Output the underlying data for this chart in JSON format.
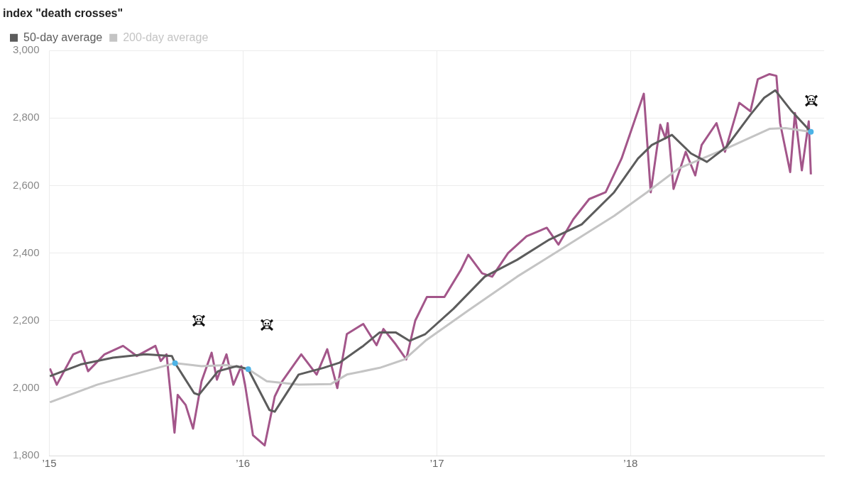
{
  "chart_data": {
    "type": "line",
    "title": "index \"death crosses\"",
    "xlim": [
      "2015-01-01",
      "2019-01-01"
    ],
    "xticks": [
      {
        "value": "2015-01-01",
        "label": "’15"
      },
      {
        "value": "2016-01-01",
        "label": "’16"
      },
      {
        "value": "2017-01-01",
        "label": "’17"
      },
      {
        "value": "2018-01-01",
        "label": "’18"
      }
    ],
    "ylim": [
      1800,
      3000
    ],
    "yticks": [
      {
        "value": 1800,
        "label": "1,800"
      },
      {
        "value": 2000,
        "label": "2,000"
      },
      {
        "value": 2200,
        "label": "2,200"
      },
      {
        "value": 2400,
        "label": "2,400"
      },
      {
        "value": 2600,
        "label": "2,600"
      },
      {
        "value": 2800,
        "label": "2,800"
      },
      {
        "value": 3000,
        "label": "3,000"
      }
    ],
    "grid": true,
    "legend": "top left",
    "marker": "none",
    "line_style": "solid",
    "series": [
      {
        "name": "50-day average",
        "color": "#5c5c5c",
        "x": [
          "2015-01-02",
          "2015-03-01",
          "2015-05-01",
          "2015-07-01",
          "2015-08-20",
          "2015-08-26",
          "2015-10-01",
          "2015-10-10",
          "2015-11-15",
          "2015-12-20",
          "2016-01-11",
          "2016-02-20",
          "2016-03-01",
          "2016-04-15",
          "2016-06-01",
          "2016-07-01",
          "2016-08-15",
          "2016-09-15",
          "2016-10-15",
          "2016-11-10",
          "2016-12-10",
          "2017-02-01",
          "2017-04-01",
          "2017-06-01",
          "2017-08-01",
          "2017-10-01",
          "2017-12-01",
          "2018-01-15",
          "2018-02-10",
          "2018-03-20",
          "2018-04-25",
          "2018-05-25",
          "2018-07-01",
          "2018-08-15",
          "2018-09-10",
          "2018-10-01",
          "2018-11-01",
          "2018-12-07"
        ],
        "values": [
          2035,
          2070,
          2090,
          2100,
          2095,
          2074,
          1985,
          1980,
          2050,
          2065,
          2056,
          1935,
          1930,
          2040,
          2060,
          2075,
          2125,
          2165,
          2165,
          2140,
          2160,
          2235,
          2330,
          2380,
          2440,
          2485,
          2580,
          2680,
          2720,
          2750,
          2695,
          2670,
          2715,
          2810,
          2860,
          2882,
          2820,
          2759
        ]
      },
      {
        "name": "200-day average",
        "color": "#c4c4c4",
        "x": [
          "2015-01-02",
          "2015-04-01",
          "2015-07-01",
          "2015-08-26",
          "2015-10-15",
          "2015-12-01",
          "2016-01-11",
          "2016-02-15",
          "2016-04-15",
          "2016-06-15",
          "2016-07-15",
          "2016-09-15",
          "2016-11-01",
          "2016-12-10",
          "2017-03-01",
          "2017-06-01",
          "2017-09-01",
          "2017-12-01",
          "2018-02-01",
          "2018-04-01",
          "2018-07-01",
          "2018-09-20",
          "2018-10-20",
          "2018-12-07"
        ],
        "values": [
          1958,
          2010,
          2050,
          2074,
          2065,
          2068,
          2056,
          2020,
          2010,
          2012,
          2040,
          2060,
          2085,
          2140,
          2230,
          2330,
          2420,
          2510,
          2580,
          2650,
          2710,
          2768,
          2770,
          2759
        ]
      },
      {
        "color": "#a3568a",
        "x": [
          "2015-01-02",
          "2015-01-15",
          "2015-02-15",
          "2015-03-02",
          "2015-03-15",
          "2015-04-15",
          "2015-05-20",
          "2015-06-15",
          "2015-07-20",
          "2015-07-30",
          "2015-08-10",
          "2015-08-25",
          "2015-08-31",
          "2015-09-15",
          "2015-09-29",
          "2015-10-15",
          "2015-11-03",
          "2015-11-13",
          "2015-12-01",
          "2015-12-14",
          "2015-12-29",
          "2016-01-05",
          "2016-01-20",
          "2016-02-11",
          "2016-03-01",
          "2016-03-15",
          "2016-04-20",
          "2016-05-19",
          "2016-06-08",
          "2016-06-27",
          "2016-07-15",
          "2016-08-15",
          "2016-09-09",
          "2016-09-22",
          "2016-10-15",
          "2016-11-04",
          "2016-11-21",
          "2016-12-13",
          "2017-01-15",
          "2017-02-15",
          "2017-03-01",
          "2017-03-27",
          "2017-04-15",
          "2017-05-15",
          "2017-06-19",
          "2017-07-27",
          "2017-08-18",
          "2017-09-15",
          "2017-10-15",
          "2017-11-15",
          "2017-12-15",
          "2018-01-26",
          "2018-02-08",
          "2018-02-26",
          "2018-03-08",
          "2018-03-12",
          "2018-03-23",
          "2018-04-15",
          "2018-05-03",
          "2018-05-15",
          "2018-06-12",
          "2018-06-28",
          "2018-07-25",
          "2018-08-15",
          "2018-08-29",
          "2018-09-20",
          "2018-10-03",
          "2018-10-10",
          "2018-10-29",
          "2018-11-07",
          "2018-11-20",
          "2018-12-03",
          "2018-12-07"
        ],
        "values": [
          2058,
          2010,
          2100,
          2110,
          2050,
          2100,
          2125,
          2095,
          2125,
          2080,
          2100,
          1868,
          1980,
          1950,
          1880,
          2020,
          2105,
          2025,
          2100,
          2010,
          2065,
          2010,
          1860,
          1830,
          1975,
          2020,
          2100,
          2040,
          2115,
          2000,
          2160,
          2190,
          2127,
          2175,
          2130,
          2085,
          2200,
          2270,
          2270,
          2350,
          2395,
          2340,
          2330,
          2400,
          2450,
          2475,
          2425,
          2500,
          2560,
          2580,
          2680,
          2872,
          2580,
          2780,
          2740,
          2785,
          2590,
          2700,
          2630,
          2720,
          2785,
          2700,
          2845,
          2820,
          2915,
          2930,
          2925,
          2785,
          2640,
          2815,
          2645,
          2790,
          2633
        ]
      },
      {
        "type": "scatter",
        "color": "#4db3e6",
        "marker": "circle",
        "x": [
          "2015-08-26",
          "2016-01-11",
          "2018-12-07"
        ],
        "values": [
          2074,
          2056,
          2759
        ]
      }
    ]
  }
}
